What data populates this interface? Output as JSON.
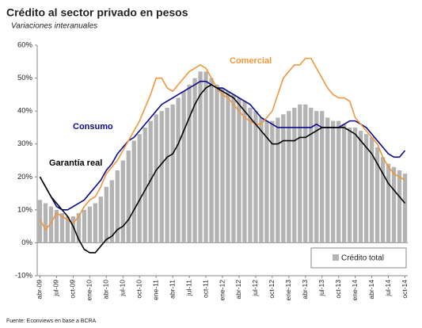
{
  "chart_data": {
    "type": "bar_line",
    "title": "Crédito al sector privado en pesos",
    "subtitle": "Variaciones interanuales",
    "source": "Fuente: Econviews en base a BCRA",
    "categories": [
      "abr-09",
      null,
      null,
      "jul-09",
      null,
      null,
      "oct-09",
      null,
      null,
      "ene-10",
      null,
      null,
      "abr-10",
      null,
      null,
      "jul-10",
      null,
      null,
      "oct-10",
      null,
      null,
      "ene-11",
      null,
      null,
      "abr-11",
      null,
      null,
      "jul-11",
      null,
      null,
      "oct-11",
      null,
      null,
      "ene-12",
      null,
      null,
      "abr-12",
      null,
      null,
      "jul-12",
      null,
      null,
      "oct-12",
      null,
      null,
      "ene-13",
      null,
      null,
      "abr-13",
      null,
      null,
      "jul-13",
      null,
      null,
      "oct-13",
      null,
      null,
      "ene-14",
      null,
      null,
      "abr-14",
      null,
      null,
      "jul-14",
      null,
      null,
      "oct-14"
    ],
    "series": [
      {
        "name": "Crédito total",
        "kind": "bar",
        "color": "#b3b3b3",
        "values": [
          13,
          12,
          11,
          10,
          9,
          8,
          8,
          9,
          10,
          11,
          12,
          14,
          17,
          19,
          22,
          25,
          28,
          31,
          33,
          35,
          37,
          39,
          40,
          41,
          42,
          44,
          46,
          48,
          50,
          52,
          52,
          50,
          48,
          47,
          46,
          45,
          44,
          43,
          41,
          40,
          38,
          37,
          37,
          38,
          39,
          40,
          41,
          42,
          42,
          41,
          40,
          40,
          38,
          37,
          37,
          36,
          35,
          35,
          34,
          33,
          32,
          29,
          26,
          24,
          23,
          22,
          21
        ]
      },
      {
        "name": "Consumo",
        "kind": "line",
        "color": "#0a0a8c",
        "values": [
          20,
          17,
          14,
          11,
          10,
          10,
          11,
          12,
          13,
          15,
          17,
          19,
          22,
          24,
          27,
          29,
          31,
          32,
          34,
          36,
          38,
          40,
          42,
          43,
          44,
          45,
          46,
          47,
          48,
          49,
          49,
          48,
          47,
          47,
          46,
          45,
          44,
          43,
          42,
          40,
          38,
          37,
          36,
          35,
          35,
          35,
          35,
          35,
          35,
          35,
          36,
          35,
          35,
          35,
          35,
          36,
          37,
          37,
          36,
          35,
          33,
          31,
          29,
          27,
          26,
          26,
          28
        ]
      },
      {
        "name": "Comercial",
        "kind": "line",
        "color": "#f0963c",
        "values": [
          7,
          4,
          6,
          9,
          8,
          7,
          6,
          8,
          11,
          13,
          14,
          17,
          21,
          23,
          25,
          28,
          31,
          34,
          37,
          41,
          45,
          50,
          50,
          47,
          46,
          48,
          50,
          52,
          53,
          54,
          53,
          50,
          47,
          45,
          44,
          42,
          40,
          38,
          37,
          36,
          36,
          38,
          40,
          45,
          50,
          52,
          54,
          54,
          56,
          56,
          53,
          50,
          47,
          45,
          44,
          44,
          43,
          38,
          36,
          34,
          32,
          30,
          26,
          23,
          21,
          20,
          19
        ]
      },
      {
        "name": "Garantía real",
        "kind": "line",
        "color": "#000000",
        "values": [
          20,
          17,
          14,
          12,
          10,
          8,
          5,
          1,
          -2,
          -3,
          -3,
          -1,
          1,
          2,
          4,
          5,
          7,
          10,
          13,
          16,
          19,
          22,
          24,
          26,
          27,
          30,
          34,
          38,
          42,
          45,
          47,
          48,
          47,
          46,
          45,
          44,
          42,
          40,
          38,
          36,
          34,
          32,
          30,
          30,
          31,
          31,
          31,
          32,
          32,
          33,
          34,
          35,
          35,
          35,
          35,
          35,
          34,
          33,
          31,
          29,
          27,
          24,
          21,
          18,
          16,
          14,
          12
        ]
      }
    ],
    "ylim": [
      -10,
      60
    ],
    "yticks": [
      {
        "value": -10,
        "label": "-10%"
      },
      {
        "value": 0,
        "label": "0%"
      },
      {
        "value": 10,
        "label": "10%"
      },
      {
        "value": 20,
        "label": "20%"
      },
      {
        "value": 30,
        "label": "30%"
      },
      {
        "value": 40,
        "label": "40%"
      },
      {
        "value": 50,
        "label": "50%"
      },
      {
        "value": 60,
        "label": "60%"
      }
    ],
    "grid": false
  }
}
